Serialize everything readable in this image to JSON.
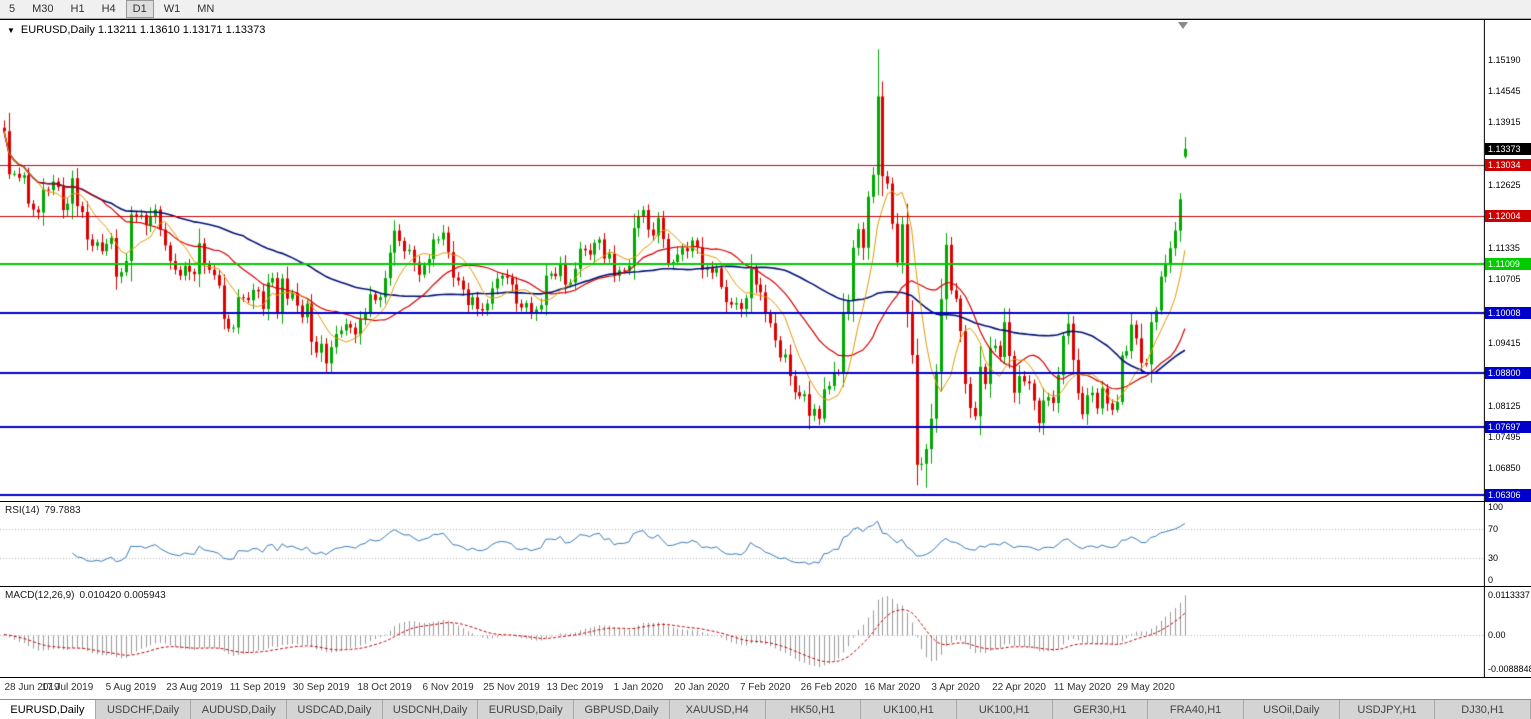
{
  "toolbar": {
    "timeframes": [
      "5",
      "M30",
      "H1",
      "H4",
      "D1",
      "W1",
      "MN"
    ],
    "active_timeframe": "D1"
  },
  "chart": {
    "title": "EURUSD,Daily 1.13211 1.13610 1.13171 1.13373",
    "symbol": "EURUSD",
    "period": "Daily"
  },
  "chart_data": {
    "type": "candlestick",
    "title": "EURUSD,Daily",
    "ohlc_current": {
      "open": "1.13211",
      "high": "1.13610",
      "low": "1.13171",
      "close": "1.13373"
    },
    "x_labels": [
      "28 Jun 2019",
      "17 Jul 2019",
      "5 Aug 2019",
      "23 Aug 2019",
      "11 Sep 2019",
      "30 Sep 2019",
      "18 Oct 2019",
      "6 Nov 2019",
      "25 Nov 2019",
      "13 Dec 2019",
      "1 Jan 2020",
      "20 Jan 2020",
      "7 Feb 2020",
      "26 Feb 2020",
      "16 Mar 2020",
      "3 Apr 2020",
      "22 Apr 2020",
      "11 May 2020",
      "29 May 2020"
    ],
    "bars_per_label": 13,
    "closes": [
      1.1373,
      1.1285,
      1.1286,
      1.1278,
      1.1283,
      1.1225,
      1.1213,
      1.1207,
      1.1254,
      1.1253,
      1.127,
      1.1259,
      1.1212,
      1.1225,
      1.1277,
      1.122,
      1.1208,
      1.1152,
      1.1139,
      1.1146,
      1.1128,
      1.1143,
      1.1155,
      1.1076,
      1.1085,
      1.1108,
      1.1203,
      1.12,
      1.1202,
      1.1181,
      1.12,
      1.1213,
      1.1172,
      1.114,
      1.1108,
      1.109,
      1.1078,
      1.1098,
      1.1086,
      1.1081,
      1.1144,
      1.1101,
      1.109,
      1.1079,
      1.1058,
      1.099,
      1.097,
      1.0972,
      1.1034,
      1.1033,
      1.1028,
      1.1049,
      1.1046,
      1.101,
      1.1064,
      1.1073,
      1.1003,
      1.1072,
      1.1031,
      1.1043,
      1.1017,
      1.0993,
      1.1021,
      1.0943,
      1.0921,
      1.0939,
      1.0899,
      1.0932,
      1.0959,
      1.0966,
      1.0979,
      1.0972,
      1.0958,
      1.0989,
      1.1003,
      1.104,
      1.1028,
      1.1034,
      1.1073,
      1.1125,
      1.117,
      1.1149,
      1.1128,
      1.1131,
      1.1105,
      1.108,
      1.1099,
      1.1112,
      1.1152,
      1.1152,
      1.1166,
      1.1126,
      1.1074,
      1.1068,
      1.105,
      1.1018,
      1.1034,
      1.101,
      1.1007,
      1.1021,
      1.1052,
      1.1072,
      1.1078,
      1.1074,
      1.106,
      1.1021,
      1.1013,
      1.1022,
      1.1001,
      1.1009,
      1.1018,
      1.1078,
      1.1082,
      1.1077,
      1.1104,
      1.106,
      1.1064,
      1.1092,
      1.1133,
      1.113,
      1.1121,
      1.1145,
      1.1152,
      1.1113,
      1.1123,
      1.1078,
      1.1089,
      1.1088,
      1.1098,
      1.1175,
      1.1199,
      1.1212,
      1.1172,
      1.116,
      1.1196,
      1.1153,
      1.1104,
      1.1106,
      1.1121,
      1.1134,
      1.1128,
      1.115,
      1.1136,
      1.109,
      1.1095,
      1.1084,
      1.1093,
      1.1055,
      1.1024,
      1.1019,
      1.1022,
      1.101,
      1.1032,
      1.1093,
      1.106,
      1.1044,
      1.1,
      1.0981,
      1.0946,
      1.0911,
      1.0917,
      1.0873,
      1.084,
      1.0832,
      1.0836,
      1.0792,
      1.0806,
      1.0786,
      1.0846,
      1.0853,
      1.0881,
      1.088,
      1.1,
      1.1026,
      1.1135,
      1.1173,
      1.1135,
      1.1239,
      1.1284,
      1.1444,
      1.1281,
      1.1266,
      1.1184,
      1.1105,
      1.1183,
      1.1004,
      1.0916,
      1.0692,
      1.0694,
      1.0724,
      1.0786,
      1.0882,
      1.103,
      1.1141,
      1.1048,
      1.1031,
      1.0965,
      1.0857,
      1.0808,
      1.0791,
      1.0892,
      1.0857,
      1.093,
      1.0935,
      1.0912,
      1.0983,
      1.0914,
      1.0839,
      1.0873,
      1.0862,
      1.0858,
      1.0823,
      1.0777,
      1.0823,
      1.083,
      1.0818,
      1.0875,
      1.0955,
      1.098,
      1.0906,
      1.0838,
      1.0795,
      1.0834,
      1.0839,
      1.0807,
      1.0848,
      1.0817,
      1.0804,
      1.082,
      1.0915,
      1.0924,
      1.0978,
      1.095,
      1.09,
      1.0897,
      1.0983,
      1.1007,
      1.1076,
      1.1101,
      1.1134,
      1.117,
      1.1234,
      1.1337
    ],
    "open_overrides": {
      "0": 1.138,
      "242": 1.13211
    },
    "high_overrides": {
      "0": 1.1395,
      "179": 1.154,
      "242": 1.1361
    },
    "low_overrides": {
      "67": 1.0879,
      "189": 1.0645,
      "242": 1.13171
    },
    "price_range": [
      1.0618,
      1.16
    ],
    "price_axis_ticks": [
      "1.15190",
      "1.14545",
      "1.13915",
      "1.12625",
      "1.11335",
      "1.10705",
      "1.09415",
      "1.08125",
      "1.07495",
      "1.06850"
    ],
    "current_price_badge": {
      "label": "1.13373",
      "price": 1.13373,
      "color": "#000000"
    },
    "hlines": [
      {
        "price": 1.13034,
        "label": "1.13034",
        "color": "#cc0000",
        "width": 1
      },
      {
        "price": 1.12004,
        "label": "1.12004",
        "color": "#cc0000",
        "width": 1
      },
      {
        "price": 1.11009,
        "label": "1.11009",
        "color": "#00cc00",
        "width": 2
      },
      {
        "price": 1.10008,
        "label": "1.10008",
        "color": "#0000cc",
        "width": 2
      },
      {
        "price": 1.088,
        "label": "1.08800",
        "color": "#0000cc",
        "width": 2
      },
      {
        "price": 1.07697,
        "label": "1.07697",
        "color": "#0000cc",
        "width": 2
      },
      {
        "price": 1.06306,
        "label": "1.06306",
        "color": "#0000cc",
        "width": 2
      }
    ],
    "moving_averages": [
      {
        "name": "ma-fast",
        "period": 8,
        "color": "#e09a00",
        "width": 1
      },
      {
        "name": "ma-mid",
        "period": 21,
        "color": "#d40000",
        "width": 1.2
      },
      {
        "name": "ma-slow",
        "period": 50,
        "color": "#001273",
        "width": 1.6
      }
    ],
    "rsi": {
      "label": "RSI(14)",
      "value": "79.7883",
      "period": 14,
      "ticks": [
        "100",
        "70",
        "30",
        "0"
      ],
      "tick_values": [
        100,
        70,
        30,
        0
      ],
      "levels": [
        70,
        30
      ],
      "line_color": "#3a7ab8"
    },
    "macd": {
      "label": "MACD(12,26,9)",
      "value": "0.010420 0.005943",
      "fast": 12,
      "slow": 26,
      "signal": 9,
      "ticks": [
        "0.0113337",
        "0.00",
        "-0.0088848"
      ],
      "hist_color": "#9b9b9b",
      "signal_color": "#c40000"
    }
  },
  "colors": {
    "candle_up": "#00a800",
    "candle_down": "#dd0000",
    "background": "#ffffff",
    "axis_text": "#000000",
    "level_dotted": "#b8b8b8"
  },
  "tabs": {
    "active_index": 0,
    "items": [
      "EURUSD,Daily",
      "USDCHF,Daily",
      "AUDUSD,Daily",
      "USDCAD,Daily",
      "USDCNH,Daily",
      "EURUSD,Daily",
      "GBPUSD,Daily",
      "XAUUSD,H4",
      "HK50,H1",
      "UK100,H1",
      "UK100,H1",
      "GER30,H1",
      "FRA40,H1",
      "USOil,Daily",
      "USDJPY,H1",
      "DJ30,H1"
    ]
  }
}
